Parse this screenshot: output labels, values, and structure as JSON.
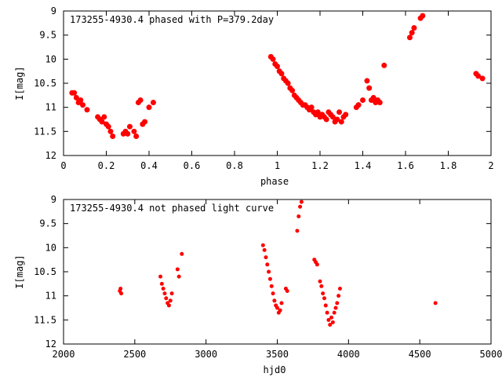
{
  "chart_data": [
    {
      "type": "scatter",
      "title": "173255-4930.4 phased with P=379.2day",
      "xlabel": "phase",
      "ylabel": "I[mag]",
      "xlim": [
        0,
        2
      ],
      "ylim": [
        9,
        12
      ],
      "y_inverted": true,
      "grid": false,
      "marker_color": "#ff0000",
      "x_ticks": [
        "0",
        "0.2",
        "0.4",
        "0.6",
        "0.8",
        "1",
        "1.2",
        "1.4",
        "1.6",
        "1.8",
        "2"
      ],
      "y_ticks": [
        "9",
        "9.5",
        "10",
        "10.5",
        "11",
        "11.5",
        "12"
      ],
      "x": [
        0.04,
        0.05,
        0.06,
        0.07,
        0.08,
        0.09,
        0.11,
        0.16,
        0.17,
        0.18,
        0.19,
        0.2,
        0.21,
        0.22,
        0.23,
        0.28,
        0.29,
        0.3,
        0.31,
        0.33,
        0.34,
        0.35,
        0.36,
        0.37,
        0.38,
        0.4,
        0.42,
        0.97,
        0.98,
        0.99,
        1.0,
        1.01,
        1.02,
        1.03,
        1.04,
        1.05,
        1.06,
        1.07,
        1.08,
        1.09,
        1.1,
        1.11,
        1.12,
        1.13,
        1.14,
        1.15,
        1.16,
        1.17,
        1.18,
        1.19,
        1.2,
        1.21,
        1.22,
        1.23,
        1.24,
        1.25,
        1.26,
        1.27,
        1.28,
        1.29,
        1.3,
        1.31,
        1.32,
        1.37,
        1.38,
        1.4,
        1.42,
        1.43,
        1.44,
        1.45,
        1.46,
        1.47,
        1.48,
        1.5,
        1.62,
        1.63,
        1.64,
        1.67,
        1.68,
        1.93,
        1.94,
        1.96
      ],
      "y": [
        10.7,
        10.7,
        10.8,
        10.9,
        10.85,
        10.95,
        11.05,
        11.2,
        11.25,
        11.3,
        11.2,
        11.35,
        11.4,
        11.5,
        11.6,
        11.55,
        11.5,
        11.55,
        11.4,
        11.5,
        11.6,
        10.9,
        10.85,
        11.35,
        11.3,
        11.0,
        10.9,
        9.95,
        10.0,
        10.1,
        10.15,
        10.25,
        10.3,
        10.4,
        10.45,
        10.5,
        10.6,
        10.65,
        10.75,
        10.8,
        10.85,
        10.9,
        10.95,
        10.95,
        11.0,
        11.05,
        11.0,
        11.1,
        11.15,
        11.1,
        11.2,
        11.15,
        11.2,
        11.25,
        11.1,
        11.15,
        11.2,
        11.3,
        11.25,
        11.1,
        11.3,
        11.2,
        11.15,
        11.0,
        10.95,
        10.85,
        10.45,
        10.6,
        10.85,
        10.8,
        10.9,
        10.85,
        10.9,
        10.13,
        9.55,
        9.45,
        9.35,
        9.15,
        9.1,
        10.3,
        10.35,
        10.4
      ]
    },
    {
      "type": "scatter",
      "title": "173255-4930.4 not phased light curve",
      "xlabel": "hjd0",
      "ylabel": "I[mag]",
      "xlim": [
        2000,
        5000
      ],
      "ylim": [
        9,
        12
      ],
      "y_inverted": true,
      "grid": false,
      "marker_color": "#ff0000",
      "x_ticks": [
        "2000",
        "2500",
        "3000",
        "3500",
        "4000",
        "4500",
        "5000"
      ],
      "y_ticks": [
        "9",
        "9.5",
        "10",
        "10.5",
        "11",
        "11.5",
        "12"
      ],
      "x": [
        2395,
        2400,
        2405,
        2680,
        2690,
        2700,
        2710,
        2720,
        2730,
        2740,
        2750,
        2760,
        2800,
        2810,
        2830,
        3400,
        3410,
        3420,
        3430,
        3440,
        3450,
        3460,
        3470,
        3480,
        3490,
        3500,
        3510,
        3520,
        3530,
        3560,
        3570,
        3640,
        3650,
        3660,
        3670,
        3760,
        3770,
        3780,
        3800,
        3810,
        3820,
        3830,
        3840,
        3850,
        3860,
        3870,
        3880,
        3890,
        3900,
        3910,
        3920,
        3930,
        3940,
        4610
      ],
      "y": [
        10.9,
        10.85,
        10.95,
        10.6,
        10.75,
        10.85,
        10.95,
        11.05,
        11.15,
        11.2,
        11.1,
        10.95,
        10.45,
        10.6,
        10.13,
        9.95,
        10.05,
        10.2,
        10.35,
        10.5,
        10.65,
        10.8,
        10.95,
        11.1,
        11.2,
        11.25,
        11.35,
        11.3,
        11.15,
        10.85,
        10.9,
        9.65,
        9.35,
        9.15,
        9.05,
        10.25,
        10.3,
        10.35,
        10.7,
        10.8,
        10.95,
        11.05,
        11.2,
        11.35,
        11.5,
        11.6,
        11.45,
        11.55,
        11.35,
        11.25,
        11.15,
        11.0,
        10.85,
        11.15
      ]
    }
  ]
}
